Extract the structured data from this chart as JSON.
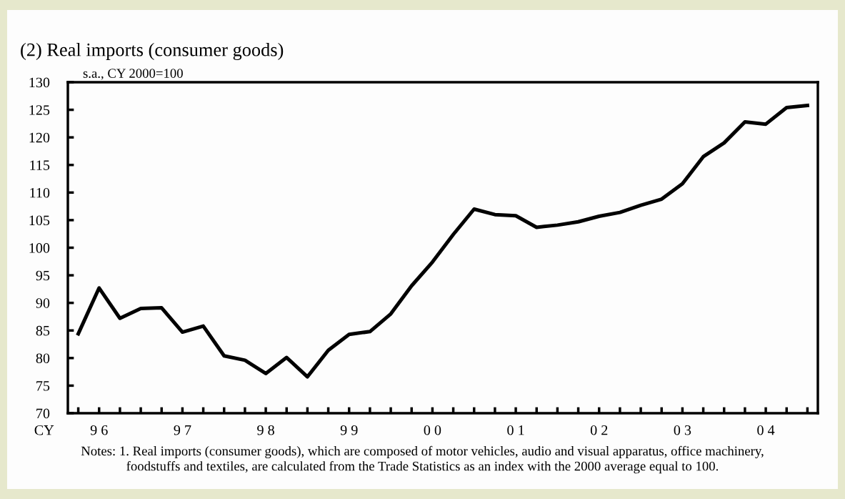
{
  "chart_data": {
    "type": "line",
    "title": "(2) Real imports (consumer goods)",
    "ylabel": "s.a., CY 2000=100",
    "categories": [
      null,
      "9 6",
      null,
      null,
      null,
      "9 7",
      null,
      null,
      null,
      "9 8",
      null,
      null,
      null,
      "9 9",
      null,
      null,
      null,
      "0 0",
      null,
      null,
      null,
      "0 1",
      null,
      null,
      null,
      "0 2",
      null,
      null,
      null,
      "0 3",
      null,
      null,
      null,
      "0 4",
      null,
      null
    ],
    "series": [
      {
        "color": "#000000",
        "values": [
          84.4,
          92.7,
          87.2,
          89.0,
          89.1,
          84.7,
          85.8,
          80.4,
          79.6,
          77.2,
          80.1,
          76.6,
          81.4,
          84.3,
          84.8,
          88.0,
          93.1,
          97.4,
          102.4,
          107.0,
          106.0,
          105.8,
          103.7,
          104.1,
          104.7,
          105.7,
          106.4,
          107.7,
          108.8,
          111.6,
          116.5,
          119.0,
          122.8,
          122.4,
          125.4,
          125.8
        ]
      }
    ],
    "ylim": [
      70,
      130
    ],
    "yticks": [
      70,
      75,
      80,
      85,
      90,
      95,
      100,
      105,
      110,
      115,
      120,
      125,
      130
    ],
    "grid": false,
    "legend": false,
    "marker": "none",
    "line_style": "solid",
    "annotations": [
      "CY",
      "Notes: 1. Real imports (consumer goods), which are composed of motor vehicles, audio and visual apparatus, office machinery,\nfoodstuffs and textiles, are calculated from the Trade Statistics as an index with the 2000 average equal to 100."
    ]
  }
}
